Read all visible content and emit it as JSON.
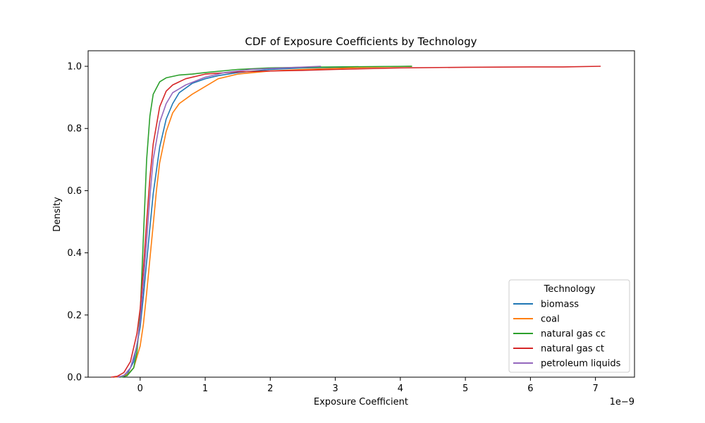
{
  "chart_data": {
    "type": "line",
    "title": "CDF of Exposure Coefficients by Technology",
    "xlabel": "Exposure Coefficient",
    "ylabel": "Density",
    "x_offset_label": "1e−9",
    "xlim": [
      -0.8,
      7.6
    ],
    "ylim": [
      0.0,
      1.05
    ],
    "x_ticks": [
      0,
      1,
      2,
      3,
      4,
      5,
      6,
      7
    ],
    "x_tick_labels": [
      "0",
      "1",
      "2",
      "3",
      "4",
      "5",
      "6",
      "7"
    ],
    "y_ticks": [
      0.0,
      0.2,
      0.4,
      0.6,
      0.8,
      1.0
    ],
    "y_tick_labels": [
      "0.0",
      "0.2",
      "0.4",
      "0.6",
      "0.8",
      "1.0"
    ],
    "grid": false,
    "legend": {
      "title": "Technology",
      "placement": "bottom-right"
    },
    "series": [
      {
        "name": "biomass",
        "color": "#1f77b4",
        "points": [
          [
            -0.42,
            0
          ],
          [
            -0.3,
            0.002
          ],
          [
            -0.2,
            0.01
          ],
          [
            -0.1,
            0.05
          ],
          [
            0,
            0.16
          ],
          [
            0.05,
            0.26
          ],
          [
            0.1,
            0.37
          ],
          [
            0.15,
            0.48
          ],
          [
            0.2,
            0.59
          ],
          [
            0.3,
            0.74
          ],
          [
            0.4,
            0.83
          ],
          [
            0.5,
            0.88
          ],
          [
            0.6,
            0.915
          ],
          [
            0.8,
            0.945
          ],
          [
            1.0,
            0.96
          ],
          [
            1.2,
            0.97
          ],
          [
            1.5,
            0.98
          ],
          [
            2.0,
            0.99
          ],
          [
            2.5,
            0.995
          ],
          [
            3.0,
            0.997
          ],
          [
            3.5,
            0.998
          ],
          [
            4.18,
            1.0
          ]
        ]
      },
      {
        "name": "coal",
        "color": "#ff7f0e",
        "points": [
          [
            -0.4,
            0
          ],
          [
            -0.3,
            0.002
          ],
          [
            -0.2,
            0.008
          ],
          [
            -0.1,
            0.03
          ],
          [
            0,
            0.1
          ],
          [
            0.05,
            0.17
          ],
          [
            0.1,
            0.27
          ],
          [
            0.15,
            0.38
          ],
          [
            0.2,
            0.49
          ],
          [
            0.25,
            0.6
          ],
          [
            0.3,
            0.69
          ],
          [
            0.4,
            0.79
          ],
          [
            0.5,
            0.85
          ],
          [
            0.6,
            0.88
          ],
          [
            0.8,
            0.91
          ],
          [
            1.0,
            0.935
          ],
          [
            1.2,
            0.96
          ],
          [
            1.5,
            0.975
          ],
          [
            2.0,
            0.985
          ],
          [
            2.5,
            0.99
          ],
          [
            3.0,
            0.993
          ],
          [
            3.5,
            0.997
          ],
          [
            4.18,
            1.0
          ]
        ]
      },
      {
        "name": "natural gas cc",
        "color": "#2ca02c",
        "points": [
          [
            -0.3,
            0
          ],
          [
            -0.2,
            0.005
          ],
          [
            -0.1,
            0.03
          ],
          [
            -0.05,
            0.08
          ],
          [
            0,
            0.2
          ],
          [
            0.05,
            0.45
          ],
          [
            0.1,
            0.7
          ],
          [
            0.15,
            0.84
          ],
          [
            0.2,
            0.91
          ],
          [
            0.3,
            0.95
          ],
          [
            0.4,
            0.963
          ],
          [
            0.6,
            0.972
          ],
          [
            0.8,
            0.975
          ],
          [
            1.0,
            0.98
          ],
          [
            1.5,
            0.99
          ],
          [
            2.0,
            0.995
          ],
          [
            2.5,
            0.997
          ],
          [
            3.0,
            0.998
          ],
          [
            3.5,
            0.999
          ],
          [
            4.18,
            1.0
          ]
        ]
      },
      {
        "name": "natural gas ct",
        "color": "#d62728",
        "points": [
          [
            -0.45,
            0
          ],
          [
            -0.35,
            0.003
          ],
          [
            -0.25,
            0.015
          ],
          [
            -0.15,
            0.05
          ],
          [
            -0.05,
            0.14
          ],
          [
            0,
            0.22
          ],
          [
            0.05,
            0.35
          ],
          [
            0.1,
            0.5
          ],
          [
            0.15,
            0.64
          ],
          [
            0.2,
            0.75
          ],
          [
            0.3,
            0.87
          ],
          [
            0.4,
            0.92
          ],
          [
            0.5,
            0.94
          ],
          [
            0.7,
            0.96
          ],
          [
            1.0,
            0.975
          ],
          [
            1.5,
            0.982
          ],
          [
            2.0,
            0.985
          ],
          [
            2.5,
            0.987
          ],
          [
            3.0,
            0.99
          ],
          [
            4.0,
            0.995
          ],
          [
            5.0,
            0.997
          ],
          [
            6.0,
            0.998
          ],
          [
            6.5,
            0.998
          ],
          [
            7.08,
            1.0
          ]
        ]
      },
      {
        "name": "petroleum liquids",
        "color": "#9467bd",
        "points": [
          [
            -0.35,
            0
          ],
          [
            -0.25,
            0.005
          ],
          [
            -0.15,
            0.03
          ],
          [
            -0.05,
            0.1
          ],
          [
            0,
            0.18
          ],
          [
            0.05,
            0.3
          ],
          [
            0.1,
            0.44
          ],
          [
            0.15,
            0.58
          ],
          [
            0.2,
            0.7
          ],
          [
            0.3,
            0.82
          ],
          [
            0.4,
            0.88
          ],
          [
            0.5,
            0.915
          ],
          [
            0.7,
            0.94
          ],
          [
            1.0,
            0.965
          ],
          [
            1.3,
            0.98
          ],
          [
            1.7,
            0.99
          ],
          [
            2.2,
            0.995
          ],
          [
            2.78,
            1.0
          ]
        ]
      }
    ]
  }
}
